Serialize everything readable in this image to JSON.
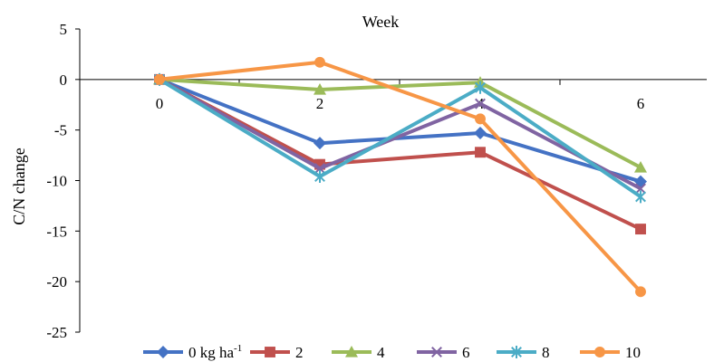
{
  "chart_data": {
    "type": "line",
    "title": "",
    "xlabel": "Week",
    "ylabel": "C/N change",
    "x": [
      0,
      2,
      4,
      6
    ],
    "x_tick_labels": [
      "0",
      "2",
      "4",
      "6"
    ],
    "ylim": [
      -25,
      5
    ],
    "y_ticks": [
      5,
      0,
      -5,
      -10,
      -15,
      -20,
      -25
    ],
    "y_tick_labels": [
      "5",
      "0",
      "-5",
      "-10",
      "-15",
      "-20",
      "-25"
    ],
    "grid": false,
    "legend_position": "bottom",
    "series": [
      {
        "name": "0 kg ha",
        "name_sup": "-1",
        "color": "#4472C4",
        "marker": "diamond",
        "values": [
          0,
          -6.3,
          -5.3,
          -10.1
        ]
      },
      {
        "name": "2",
        "color": "#C0504D",
        "marker": "square",
        "values": [
          0,
          -8.4,
          -7.2,
          -14.8
        ]
      },
      {
        "name": "4",
        "color": "#9BBB59",
        "marker": "triangle",
        "values": [
          0,
          -1.0,
          -0.3,
          -8.7
        ]
      },
      {
        "name": "6",
        "color": "#8064A2",
        "marker": "x",
        "values": [
          0,
          -8.8,
          -2.4,
          -10.8
        ]
      },
      {
        "name": "8",
        "color": "#4BACC6",
        "marker": "star",
        "values": [
          0,
          -9.6,
          -0.8,
          -11.6
        ]
      },
      {
        "name": "10",
        "color": "#F79646",
        "marker": "circle",
        "values": [
          0,
          1.7,
          -3.9,
          -21.0
        ]
      }
    ]
  }
}
